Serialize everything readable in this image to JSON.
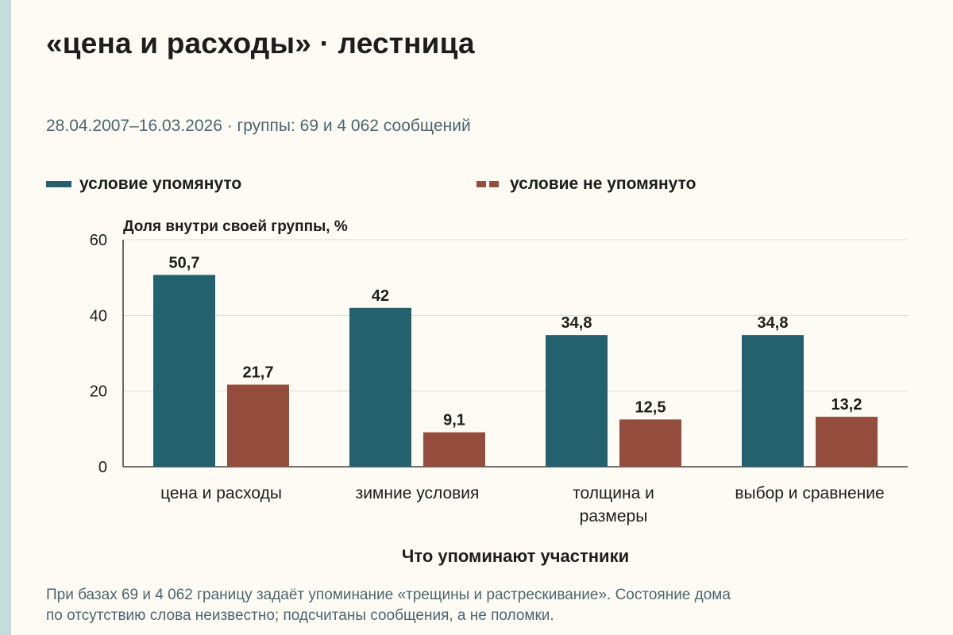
{
  "title": "«цена и расходы» · лестница",
  "subtitle": "28.04.2007–16.03.2026 · группы: 69 и 4 062 сообщений",
  "footnote_line1": "При базах 69 и 4 062 границу задаёт упоминание «трещины и растрескивание». Состояние дома",
  "footnote_line2": "по отсутствию слова неизвестно; подсчитаны сообщения, а не поломки.",
  "colors": {
    "mentioned": "#22616d",
    "not_mentioned": "#944d3d",
    "background": "#fdfbf4"
  },
  "chart_data": {
    "type": "bar",
    "ylabel": "Доля внутри своей группы, %",
    "xlabel": "Что упоминают участники",
    "ylim": [
      0,
      60
    ],
    "yticks": [
      0,
      20,
      40,
      60
    ],
    "grid": true,
    "legend_position": "top",
    "categories": [
      [
        "цена и расходы"
      ],
      [
        "зимние условия"
      ],
      [
        "толщина и",
        "размеры"
      ],
      [
        "выбор и сравнение"
      ]
    ],
    "series": [
      {
        "name": "условие упомянуто",
        "color": "#22616d",
        "values": [
          50.7,
          42,
          34.8,
          34.8
        ],
        "labels": [
          "50,7",
          "42",
          "34,8",
          "34,8"
        ]
      },
      {
        "name": "условие не упомянуто",
        "color": "#944d3d",
        "values": [
          21.7,
          9.1,
          12.5,
          13.2
        ],
        "labels": [
          "21,7",
          "9,1",
          "12,5",
          "13,2"
        ]
      }
    ]
  }
}
